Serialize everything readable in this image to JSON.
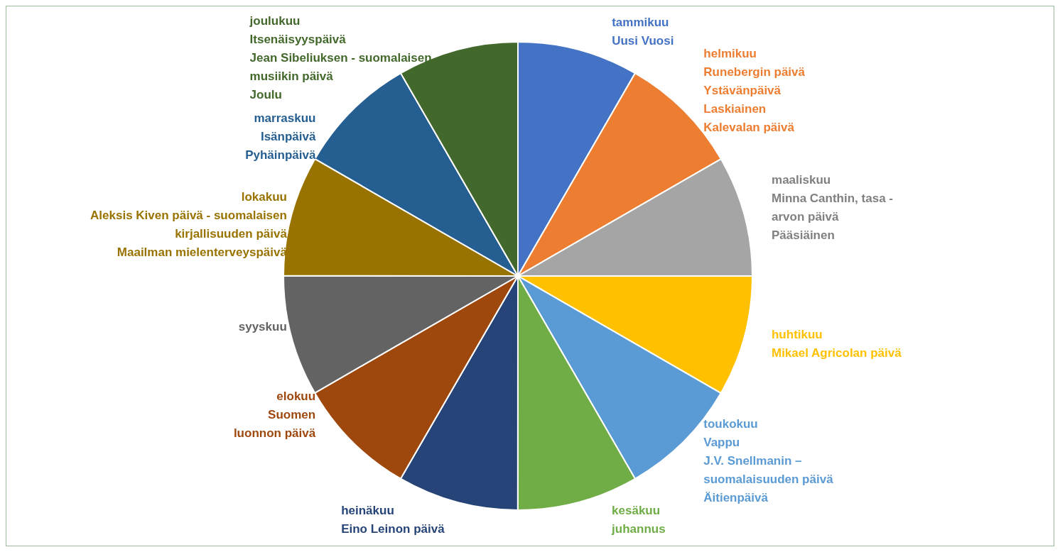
{
  "chart_data": {
    "type": "pie",
    "categories": [
      "tammikuu\nUusi Vuosi",
      "helmikuu\nRunebergin päivä\nYstävänpäivä\nLaskiainen\nKalevalan päivä",
      "maaliskuu\nMinna Canthin, tasa -\narvon päivä\nPääsiäinen",
      "huhtikuu\nMikael Agricolan päivä",
      "toukokuu\nVappu\nJ.V. Snellmanin –\nsuomalaisuuden päivä\nÄitienpäivä",
      "kesäkuu\njuhannus",
      "heinäkuu\nEino Leinon päivä",
      "elokuu\nSuomen\nluonnon päivä",
      "syyskuu",
      "lokakuu\nAleksis Kiven päivä  - suomalaisen\nkirjallisuuden päivä\nMaailman mielenterveyspäivä",
      "marraskuu\nIsänpäivä\nPyhäinpäivä",
      "joulukuu\nItsenäisyyspäivä\nJean Sibeliuksen  - suomalaisen\nmusiikin päivä\nJoulu"
    ],
    "values": [
      8.33,
      8.34,
      8.33,
      8.34,
      8.33,
      8.34,
      8.33,
      8.34,
      8.33,
      8.33,
      8.33,
      8.33
    ],
    "colors": [
      "#4472c4",
      "#ed7d31",
      "#a5a5a5",
      "#ffc000",
      "#5b9bd5",
      "#70ad47",
      "#264478",
      "#9e480e",
      "#636363",
      "#997300",
      "#255e91",
      "#43682b"
    ]
  }
}
